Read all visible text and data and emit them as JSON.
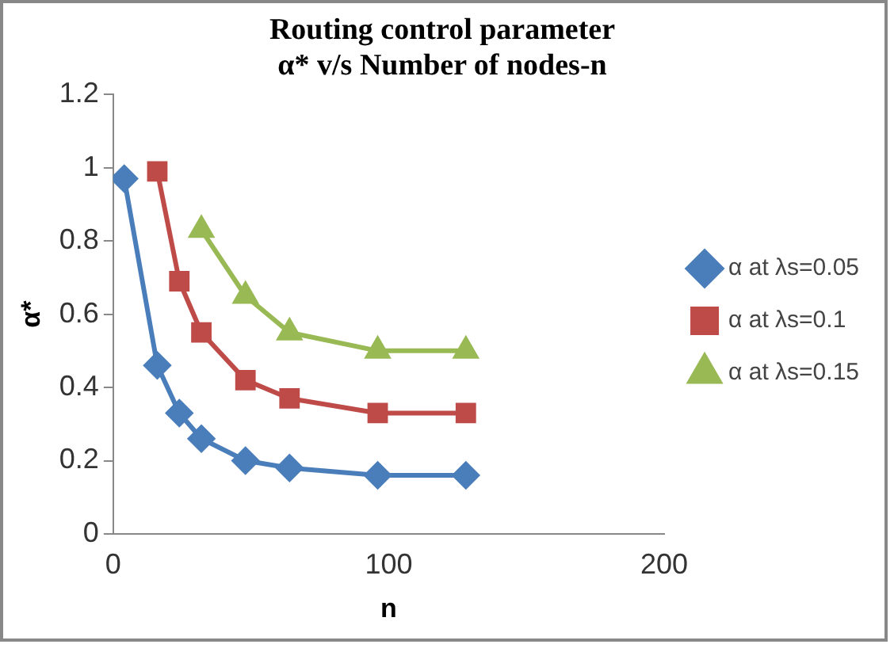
{
  "chart_data": {
    "type": "line",
    "title": [
      "Routing control parameter",
      "α* v/s Number of nodes-n"
    ],
    "xlabel": "n",
    "ylabel": "α*",
    "xlim": [
      0,
      200
    ],
    "xticks": [
      0,
      100,
      200
    ],
    "ylim": [
      0,
      1.2
    ],
    "yticks": [
      0,
      0.2,
      0.4,
      0.6,
      0.8,
      1,
      1.2
    ],
    "grid": false,
    "legend": "right",
    "line_style": "solid",
    "series": [
      {
        "name": "α at λs=0.05",
        "color": "#4a7ebb",
        "marker": "diamond",
        "x": [
          4,
          16,
          24,
          32,
          48,
          64,
          96,
          128
        ],
        "values": [
          0.97,
          0.46,
          0.33,
          0.26,
          0.2,
          0.18,
          0.16,
          0.16
        ]
      },
      {
        "name": "α at λs=0.1",
        "color": "#be4b48",
        "marker": "square",
        "x": [
          16,
          24,
          32,
          48,
          64,
          96,
          128
        ],
        "values": [
          0.99,
          0.69,
          0.55,
          0.42,
          0.37,
          0.33,
          0.33
        ]
      },
      {
        "name": "α at λs=0.15",
        "color": "#98b954",
        "marker": "triangle",
        "x": [
          32,
          48,
          64,
          96,
          128
        ],
        "values": [
          0.83,
          0.65,
          0.55,
          0.5,
          0.5
        ]
      }
    ]
  }
}
